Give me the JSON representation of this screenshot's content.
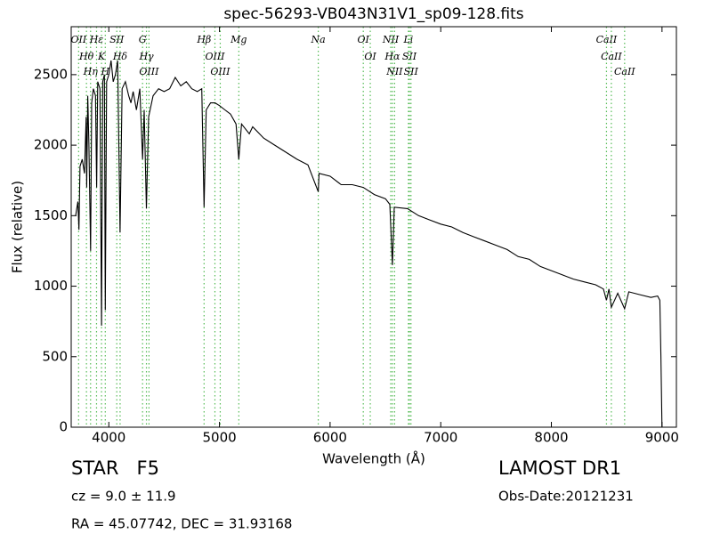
{
  "chart_data": {
    "type": "line",
    "title": "spec-56293-VB043N31V1_sp09-128.fits",
    "x_label": "Wavelength (Å)",
    "y_label": "Flux (relative)",
    "color": "#000000",
    "line_color": "#55bb55",
    "xlim": [
      3660,
      9130
    ],
    "ylim": [
      0,
      2840
    ],
    "xticks": [
      4000,
      5000,
      6000,
      7000,
      8000,
      9000
    ],
    "yticks": [
      0,
      500,
      1000,
      1500,
      2000,
      2500
    ],
    "grid": false,
    "x": [
      3700,
      3720,
      3730,
      3740,
      3760,
      3780,
      3795,
      3800,
      3810,
      3820,
      3835,
      3845,
      3860,
      3880,
      3890,
      3900,
      3920,
      3934,
      3945,
      3960,
      3968,
      3980,
      4000,
      4020,
      4040,
      4060,
      4080,
      4102,
      4120,
      4150,
      4180,
      4200,
      4220,
      4250,
      4280,
      4305,
      4320,
      4340,
      4360,
      4400,
      4450,
      4500,
      4550,
      4600,
      4650,
      4700,
      4750,
      4800,
      4840,
      4861,
      4880,
      4920,
      4960,
      5000,
      5050,
      5100,
      5150,
      5175,
      5200,
      5270,
      5300,
      5400,
      5500,
      5600,
      5700,
      5800,
      5893,
      5900,
      6000,
      6100,
      6200,
      6300,
      6400,
      6500,
      6540,
      6563,
      6580,
      6700,
      6800,
      6900,
      7000,
      7100,
      7200,
      7300,
      7400,
      7500,
      7600,
      7700,
      7800,
      7900,
      8000,
      8100,
      8200,
      8300,
      8400,
      8470,
      8498,
      8520,
      8542,
      8600,
      8662,
      8700,
      8800,
      8900,
      8960,
      8980,
      8990,
      9000
    ],
    "values": [
      1500,
      1600,
      1400,
      1850,
      1900,
      1800,
      2200,
      1700,
      2350,
      2000,
      1250,
      2300,
      2400,
      2350,
      1700,
      2450,
      2400,
      720,
      2450,
      2500,
      830,
      2450,
      2500,
      2600,
      2450,
      2500,
      2600,
      1380,
      2400,
      2450,
      2350,
      2300,
      2380,
      2250,
      2400,
      1900,
      2250,
      1550,
      2200,
      2350,
      2400,
      2380,
      2400,
      2480,
      2420,
      2450,
      2400,
      2380,
      2400,
      1560,
      2250,
      2300,
      2300,
      2280,
      2250,
      2220,
      2150,
      1900,
      2150,
      2080,
      2130,
      2050,
      2000,
      1950,
      1900,
      1860,
      1670,
      1800,
      1780,
      1720,
      1720,
      1700,
      1650,
      1620,
      1580,
      1150,
      1560,
      1550,
      1500,
      1470,
      1440,
      1420,
      1380,
      1350,
      1320,
      1290,
      1260,
      1210,
      1190,
      1140,
      1110,
      1080,
      1050,
      1030,
      1010,
      980,
      900,
      980,
      850,
      950,
      840,
      960,
      940,
      920,
      930,
      900,
      500,
      0
    ],
    "lines": [
      {
        "label": "OII",
        "wavelength": 3727
      },
      {
        "label": "Hθ",
        "wavelength": 3798
      },
      {
        "label": "Hη",
        "wavelength": 3835
      },
      {
        "label": "Hε",
        "wavelength": 3889
      },
      {
        "label": "K",
        "wavelength": 3934
      },
      {
        "label": "H",
        "wavelength": 3968
      },
      {
        "label": "SII",
        "wavelength": 4072
      },
      {
        "label": "Hδ",
        "wavelength": 4102
      },
      {
        "label": "G",
        "wavelength": 4305
      },
      {
        "label": "Hγ",
        "wavelength": 4340
      },
      {
        "label": "OIII",
        "wavelength": 4363
      },
      {
        "label": "Hβ",
        "wavelength": 4861
      },
      {
        "label": "OIII",
        "wavelength": 4959
      },
      {
        "label": "OIII",
        "wavelength": 5007
      },
      {
        "label": "Mg",
        "wavelength": 5175
      },
      {
        "label": "Na",
        "wavelength": 5893
      },
      {
        "label": "OI",
        "wavelength": 6300
      },
      {
        "label": "OI",
        "wavelength": 6363
      },
      {
        "label": "NII",
        "wavelength": 6548
      },
      {
        "label": "Hα",
        "wavelength": 6563
      },
      {
        "label": "NII",
        "wavelength": 6583
      },
      {
        "label": "Li",
        "wavelength": 6708
      },
      {
        "label": "SII",
        "wavelength": 6717
      },
      {
        "label": "SII",
        "wavelength": 6731
      },
      {
        "label": "CaII",
        "wavelength": 8498
      },
      {
        "label": "CaII",
        "wavelength": 8542
      },
      {
        "label": "CaII",
        "wavelength": 8662
      }
    ],
    "info": {
      "object_class": "STAR   F5",
      "redshift": "cz = 9.0 ± 11.9",
      "coordinates": "RA = 45.07742, DEC = 31.93168",
      "survey": "LAMOST DR1",
      "obs_date": "Obs-Date:20121231"
    }
  }
}
